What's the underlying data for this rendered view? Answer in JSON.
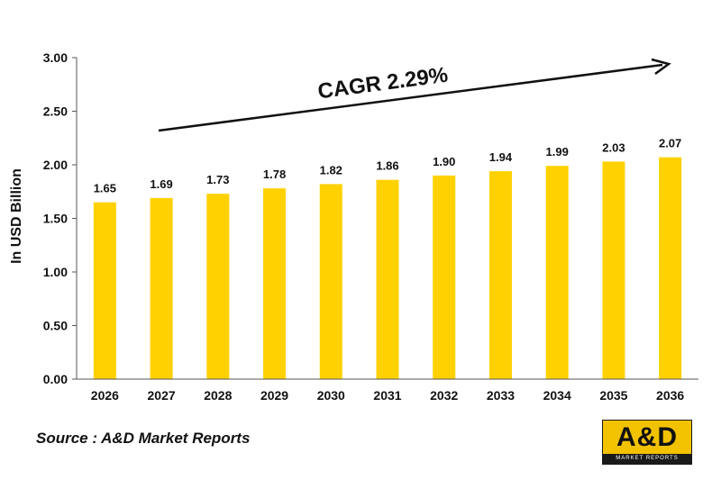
{
  "chart_data": {
    "type": "bar",
    "categories": [
      "2026",
      "2027",
      "2028",
      "2029",
      "2030",
      "2031",
      "2032",
      "2033",
      "2034",
      "2035",
      "2036"
    ],
    "values": [
      1.65,
      1.69,
      1.73,
      1.78,
      1.82,
      1.86,
      1.9,
      1.94,
      1.99,
      2.03,
      2.07
    ],
    "value_labels": [
      "1.65",
      "1.69",
      "1.73",
      "1.78",
      "1.82",
      "1.86",
      "1.90",
      "1.94",
      "1.99",
      "2.03",
      "2.07"
    ],
    "ylabel": "In USD Billion",
    "ylim": [
      0,
      3
    ],
    "yticks": [
      "0.00",
      "0.50",
      "1.00",
      "1.50",
      "2.00",
      "2.50",
      "3.00"
    ],
    "grid": false,
    "bar_color": "#FFD100",
    "annotation": "CAGR 2.29%"
  },
  "source": "Source : A&D Market Reports",
  "logo": {
    "main_text": "A&D",
    "sub_text": "MARKET REPORTS",
    "color": "#F2C200"
  }
}
